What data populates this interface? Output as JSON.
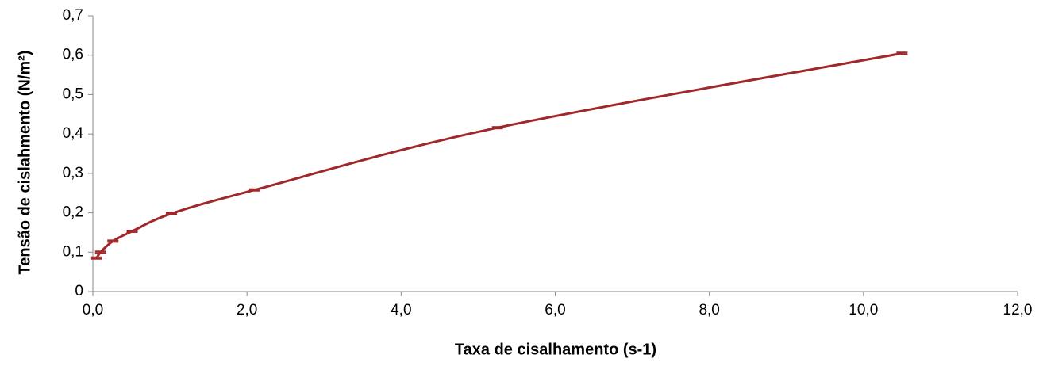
{
  "chart_data": {
    "type": "line",
    "xlabel": "Taxa de cisalhamento (s-1)",
    "ylabel": "Tensão de cislahmento (N/m²)",
    "x": [
      0.05,
      0.1,
      0.26,
      0.51,
      1.02,
      2.1,
      5.25,
      10.5
    ],
    "series": [
      {
        "name": "Tensão",
        "color": "#a0282a",
        "values": [
          0.085,
          0.1,
          0.128,
          0.153,
          0.198,
          0.258,
          0.416,
          0.605
        ],
        "errors": [
          0.002,
          0.002,
          0.002,
          0.002,
          0.002,
          0.002,
          0.002,
          0.002
        ]
      }
    ],
    "xlim": [
      0,
      12
    ],
    "xticks": [
      {
        "value": 0,
        "label": "0,0"
      },
      {
        "value": 2,
        "label": "2,0"
      },
      {
        "value": 4,
        "label": "4,0"
      },
      {
        "value": 6,
        "label": "6,0"
      },
      {
        "value": 8,
        "label": "8,0"
      },
      {
        "value": 10,
        "label": "10,0"
      },
      {
        "value": 12,
        "label": "12,0"
      }
    ],
    "ylim": [
      0,
      0.7
    ],
    "yticks": [
      0,
      {
        "value": 0.1,
        "label": "0,1"
      },
      {
        "value": 0.2,
        "label": "0,2"
      },
      {
        "value": 0.3,
        "label": "0,3"
      },
      {
        "value": 0.4,
        "label": "0,4"
      },
      {
        "value": 0.5,
        "label": "0,5"
      },
      {
        "value": 0.6,
        "label": "0,6"
      },
      {
        "value": 0.7,
        "label": "0,7"
      }
    ],
    "grid": false
  }
}
